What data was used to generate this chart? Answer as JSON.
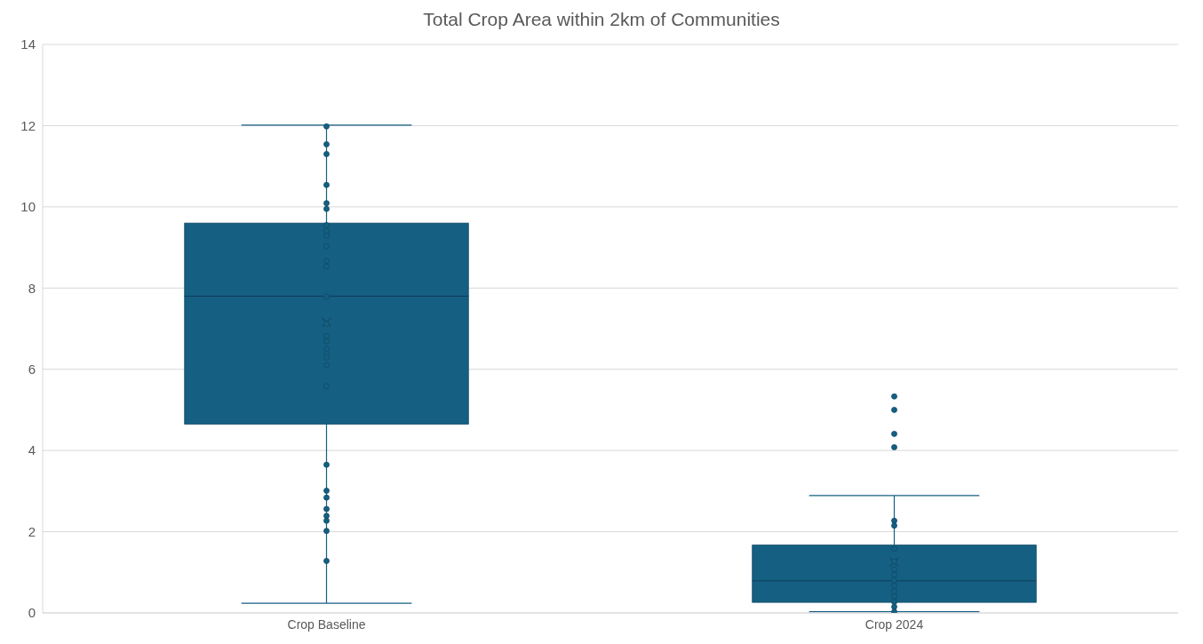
{
  "chart_data": {
    "type": "box",
    "title": "Total Crop Area within 2km of Communities",
    "categories": [
      "Crop Baseline",
      "Crop 2024"
    ],
    "color": "#155f82",
    "ylim": [
      0,
      14
    ],
    "yticks": [
      0,
      2,
      4,
      6,
      8,
      10,
      12,
      14
    ],
    "grid": "y",
    "marker": "circle",
    "boxes": [
      {
        "low": 0.24,
        "q1": 4.65,
        "median": 7.8,
        "q3": 9.6,
        "high": 12.01,
        "mean": 7.16
      },
      {
        "low": 0.03,
        "q1": 0.26,
        "median": 0.79,
        "q3": 1.67,
        "high": 2.89,
        "mean": 1.25,
        "outliers": [
          5.33,
          5,
          4.41,
          4.08
        ]
      }
    ],
    "series": [
      {
        "type": "scatter",
        "color": "#155f82",
        "x": [
          "Crop Baseline",
          "Crop Baseline",
          "Crop Baseline",
          "Crop Baseline",
          "Crop Baseline",
          "Crop Baseline",
          "Crop Baseline",
          "Crop Baseline",
          "Crop Baseline",
          "Crop Baseline",
          "Crop Baseline",
          "Crop Baseline",
          "Crop Baseline",
          "Crop Baseline",
          "Crop Baseline",
          "Crop Baseline",
          "Crop Baseline",
          "Crop Baseline",
          "Crop Baseline",
          "Crop Baseline",
          "Crop Baseline",
          "Crop Baseline",
          "Crop Baseline",
          "Crop Baseline",
          "Crop Baseline",
          "Crop Baseline",
          "Crop Baseline",
          "Crop Baseline",
          "Crop Baseline",
          "Crop 2024",
          "Crop 2024",
          "Crop 2024",
          "Crop 2024",
          "Crop 2024",
          "Crop 2024",
          "Crop 2024",
          "Crop 2024",
          "Crop 2024",
          "Crop 2024",
          "Crop 2024",
          "Crop 2024",
          "Crop 2024"
        ],
        "values": [
          11.98,
          11.54,
          11.3,
          10.54,
          10.09,
          9.95,
          9.55,
          9.4,
          9.29,
          9.03,
          8.67,
          8.53,
          7.79,
          7.12,
          6.81,
          6.69,
          6.5,
          6.38,
          6.29,
          6.1,
          5.58,
          3.65,
          3.01,
          2.84,
          2.56,
          2.39,
          2.27,
          2.02,
          1.28,
          2.27,
          2.15,
          1.58,
          1.27,
          1.07,
          0.94,
          0.8,
          0.67,
          0.53,
          0.41,
          0.27,
          0.15,
          0.03
        ]
      }
    ]
  }
}
